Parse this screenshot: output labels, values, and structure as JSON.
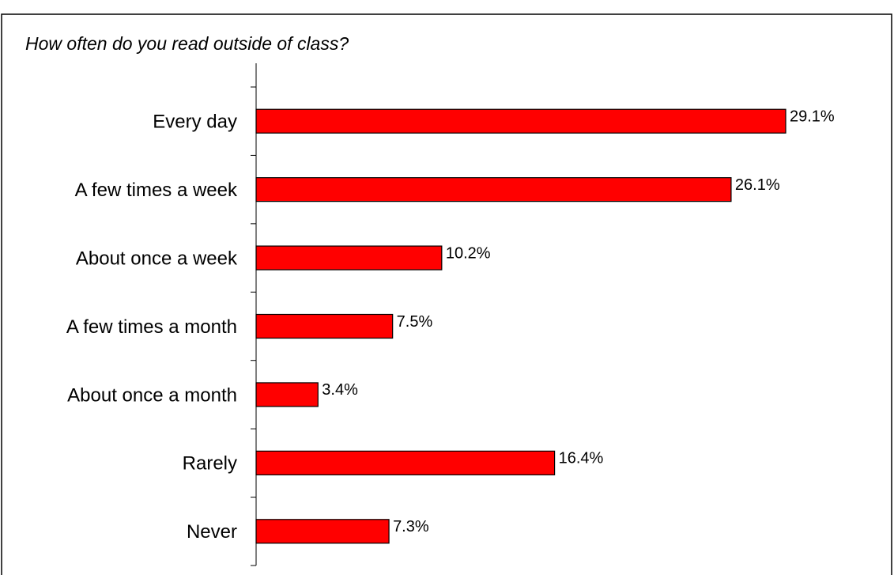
{
  "chart_data": {
    "type": "bar",
    "orientation": "horizontal",
    "title": "How often do you read outside of class?",
    "categories": [
      "Every day",
      "A few times a week",
      "About once a week",
      "A few times a month",
      "About once a month",
      "Rarely",
      "Never"
    ],
    "values": [
      29.1,
      26.1,
      10.2,
      7.5,
      3.4,
      16.4,
      7.3
    ],
    "value_labels": [
      "29.1%",
      "26.1%",
      "10.2%",
      "7.5%",
      "3.4%",
      "16.4%",
      "7.3%"
    ],
    "color": "#ff0000"
  }
}
